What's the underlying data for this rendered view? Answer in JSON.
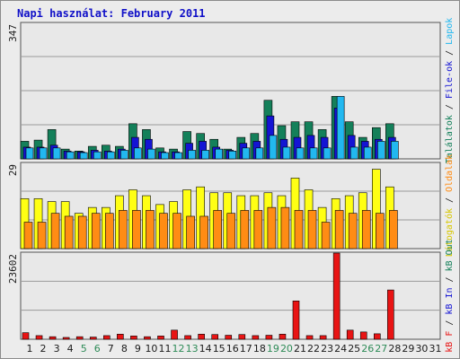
{
  "title": "Napi használat: February 2011",
  "colors": {
    "background": "#ececec",
    "panel": "#e8e8e8",
    "gridline": "#9a9a9a",
    "hits": "#14805a",
    "files": "#1414d4",
    "pages": "#22b8f0",
    "visits": "#ffff14",
    "sites": "#ff8c14",
    "kb_f": "#e81414",
    "weekend_day_label": "#2e8b57",
    "day_label": "#1a1a1a",
    "title": "#1010c8"
  },
  "chart_data": [
    {
      "type": "bar",
      "panel": "hits-files-pages",
      "ymax_label": "347",
      "right_axis_labels": [
        {
          "text": "Találatok",
          "color": "#14805a"
        },
        {
          "text": " / ",
          "color": "#1a1a1a"
        },
        {
          "text": "File-ok",
          "color": "#1414d4"
        },
        {
          "text": " / ",
          "color": "#1a1a1a"
        },
        {
          "text": "Lapok",
          "color": "#22b8f0"
        }
      ],
      "ylim": [
        0,
        347
      ],
      "series": [
        {
          "name": "Találatok",
          "values": [
            45,
            48,
            75,
            25,
            20,
            32,
            35,
            32,
            90,
            75,
            28,
            25,
            70,
            65,
            50,
            25,
            55,
            65,
            150,
            85,
            95,
            95,
            75,
            160,
            95,
            55,
            80,
            90,
            60,
            40,
            0
          ]
        },
        {
          "name": "File-ok",
          "values": [
            30,
            30,
            35,
            20,
            18,
            22,
            20,
            25,
            55,
            50,
            18,
            18,
            40,
            45,
            30,
            22,
            40,
            45,
            110,
            50,
            55,
            60,
            55,
            130,
            60,
            45,
            50,
            55,
            40,
            30,
            0
          ]
        },
        {
          "name": "Lapok",
          "values": [
            28,
            28,
            28,
            18,
            16,
            18,
            18,
            22,
            28,
            25,
            16,
            16,
            22,
            22,
            25,
            20,
            28,
            28,
            60,
            30,
            28,
            28,
            28,
            160,
            30,
            30,
            45,
            45,
            30,
            20,
            0
          ]
        }
      ],
      "note": "Bars only drawn for days 1-28"
    },
    {
      "type": "bar",
      "panel": "visits-sites",
      "ymax_label": "29",
      "right_axis_labels": [
        {
          "text": "Látogatók",
          "color": "#d8c800"
        },
        {
          "text": " / ",
          "color": "#1a1a1a"
        },
        {
          "text": "Oldalak",
          "color": "#ff8c14"
        }
      ],
      "ylim": [
        0,
        29
      ],
      "series": [
        {
          "name": "Látogatók",
          "values": [
            17,
            17,
            16,
            16,
            12,
            14,
            14,
            18,
            20,
            18,
            15,
            16,
            20,
            21,
            19,
            19,
            18,
            18,
            19,
            18,
            24,
            20,
            14,
            17,
            18,
            19,
            27,
            21,
            18,
            0,
            0
          ]
        },
        {
          "name": "Oldalak",
          "values": [
            9,
            9,
            12,
            11,
            11,
            12,
            12,
            13,
            13,
            13,
            12,
            12,
            11,
            11,
            13,
            12,
            13,
            13,
            14,
            14,
            13,
            13,
            9,
            13,
            12,
            13,
            12,
            13,
            13,
            0,
            0
          ]
        }
      ]
    },
    {
      "type": "bar",
      "panel": "kb",
      "ymax_label": "23602",
      "right_axis_labels": [
        {
          "text": "kB F",
          "color": "#e81414"
        },
        {
          "text": " / ",
          "color": "#1a1a1a"
        },
        {
          "text": "kB In",
          "color": "#1414d4"
        },
        {
          "text": " / ",
          "color": "#1a1a1a"
        },
        {
          "text": "kB Out",
          "color": "#14805a"
        }
      ],
      "ylim": [
        0,
        23602
      ],
      "series": [
        {
          "name": "kB F",
          "values": [
            1800,
            1000,
            700,
            500,
            700,
            600,
            1000,
            1400,
            900,
            700,
            900,
            2500,
            1000,
            1400,
            1300,
            1100,
            1300,
            1000,
            1100,
            1400,
            10500,
            1000,
            1000,
            23602,
            2500,
            2000,
            1500,
            13500,
            0,
            0,
            0
          ]
        }
      ]
    }
  ],
  "x_axis": {
    "days": [
      "1",
      "2",
      "3",
      "4",
      "5",
      "6",
      "7",
      "8",
      "9",
      "10",
      "11",
      "12",
      "13",
      "14",
      "15",
      "16",
      "17",
      "18",
      "19",
      "20",
      "21",
      "22",
      "23",
      "24",
      "25",
      "26",
      "27",
      "28",
      "29",
      "30",
      "31"
    ],
    "weekend_days": [
      5,
      6,
      12,
      13,
      19,
      20,
      26,
      27
    ]
  }
}
